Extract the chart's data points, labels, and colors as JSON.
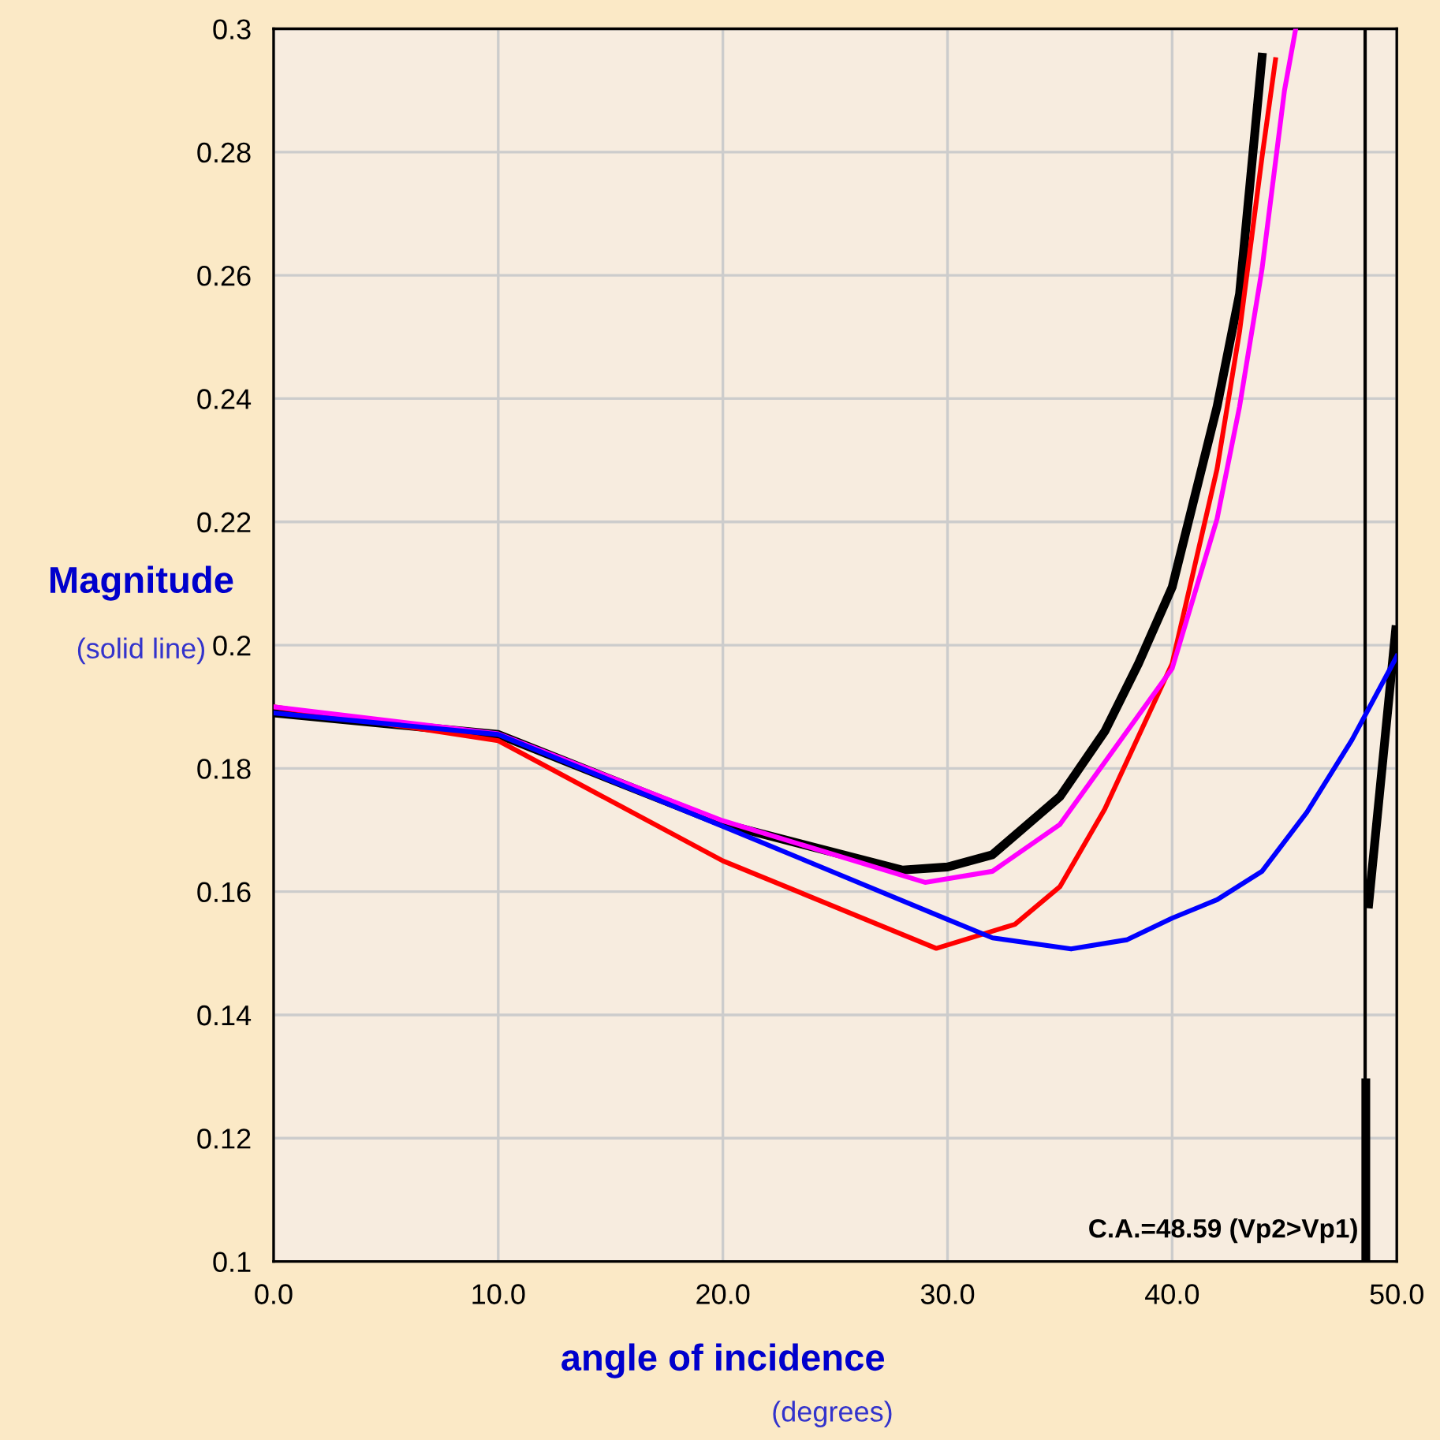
{
  "chart_data": {
    "type": "line",
    "xlabel": "angle of incidence",
    "ylabel": "Magnitude",
    "annotations": [
      "(solid line)",
      "(degrees)"
    ],
    "xlim": [
      0,
      50
    ],
    "ylim": [
      0.1,
      0.3
    ],
    "xticks": [
      {
        "value": 0,
        "label": "0.0"
      },
      {
        "value": 10,
        "label": "10.0"
      },
      {
        "value": 20,
        "label": "20.0"
      },
      {
        "value": 30,
        "label": "30.0"
      },
      {
        "value": 40,
        "label": "40.0"
      },
      {
        "value": 50,
        "label": "50.0"
      }
    ],
    "yticks": [
      0.1,
      0.12,
      0.14,
      0.16,
      0.18,
      0.2,
      0.22,
      0.24,
      0.26,
      0.28,
      0.3
    ],
    "grid": true,
    "marker": "none",
    "line_style": "solid",
    "ref_lines": [
      {
        "axis": "x",
        "value": 48.59,
        "label": "C.A.=48.59 (Vp2>Vp1)",
        "color": "#000000"
      }
    ],
    "series": [
      {
        "color": "#000000",
        "x": [
          0,
          10,
          20,
          28,
          30,
          32,
          35,
          37,
          38.5,
          40,
          42,
          43,
          44,
          46,
          48.62,
          48.62,
          48.7,
          48.75,
          49.95
        ],
        "values": [
          0.189,
          0.1855,
          0.171,
          0.1635,
          0.164,
          0.166,
          0.1754,
          0.186,
          0.197,
          0.2094,
          0.2387,
          0.257,
          0.2954,
          null,
          0.1,
          0.129,
          null,
          0.158,
          0.2025
        ]
      },
      {
        "color": "#ff0000",
        "x": [
          0,
          10,
          20,
          29.5,
          33,
          35,
          37,
          40,
          42,
          43,
          44,
          44.6
        ],
        "values": [
          0.19,
          0.1845,
          0.165,
          0.1508,
          0.1547,
          0.1608,
          0.1734,
          0.197,
          0.2286,
          0.2509,
          0.2792,
          0.295
        ]
      },
      {
        "color": "#ff00ff",
        "x": [
          0,
          10,
          20,
          29,
          32,
          35,
          37,
          40,
          42,
          43,
          44,
          45,
          45.5
        ],
        "values": [
          0.19,
          0.1856,
          0.1715,
          0.1615,
          0.1633,
          0.1709,
          0.181,
          0.1962,
          0.2205,
          0.2387,
          0.261,
          0.29,
          0.3
        ]
      },
      {
        "color": "#0000ff",
        "x": [
          0,
          10,
          20,
          30,
          32,
          35.5,
          38,
          40,
          42,
          44,
          46,
          48,
          50
        ],
        "values": [
          0.189,
          0.1855,
          0.1706,
          0.1555,
          0.1525,
          0.1507,
          0.1522,
          0.1557,
          0.1587,
          0.1633,
          0.1729,
          0.1846,
          0.1982
        ]
      }
    ]
  }
}
